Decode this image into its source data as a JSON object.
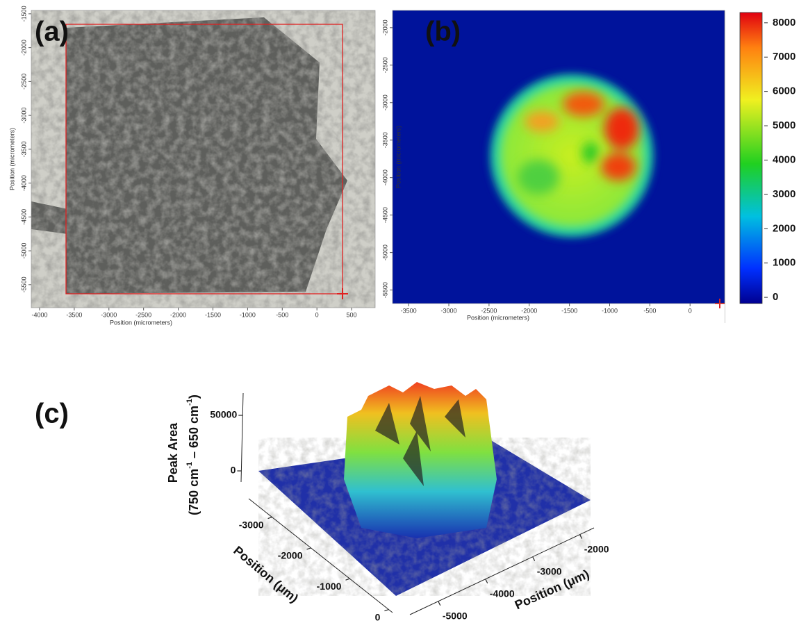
{
  "panels": [
    {
      "label": "(a)",
      "x_axis_label": "Position (micrometers)",
      "y_axis_label": "Position (micrometers)",
      "xlim": [
        -4120,
        840
      ],
      "xticks": [
        -4000,
        -3500,
        -3000,
        -2500,
        -2000,
        -1500,
        -1000,
        -500,
        0,
        500
      ],
      "ylim": [
        -5840,
        -1450
      ],
      "yticks": [
        -1500,
        -2000,
        -2500,
        -3000,
        -3500,
        -4000,
        -4500,
        -5000,
        -5500
      ]
    },
    {
      "label": "(b)",
      "x_axis_label": "Position (micrometers)",
      "y_axis_label": "Position (micrometers)",
      "xlim": [
        -3700,
        430
      ],
      "xticks": [
        -3500,
        -3000,
        -2500,
        -2000,
        -1500,
        -1000,
        -500,
        0
      ],
      "ylim": [
        -5680,
        -1770
      ],
      "yticks": [
        -2000,
        -2500,
        -3000,
        -3500,
        -4000,
        -4500,
        -5000,
        -5500
      ],
      "colorbar": {
        "lim": [
          -180,
          8300
        ],
        "ticks": [
          0,
          1000,
          2000,
          3000,
          4000,
          5000,
          6000,
          7000,
          8000
        ]
      }
    },
    {
      "label": "(c)",
      "z_axis_label": {
        "line1": "Peak Area",
        "line2": [
          "(750 cm",
          "-1",
          " – 650 cm",
          "-1",
          ")"
        ]
      },
      "zlim": [
        -10000,
        70000
      ],
      "zticks": [
        0,
        50000
      ],
      "left_axis_label": "Position (μm)",
      "left_lim": [
        -3600,
        100
      ],
      "left_ticks": [
        -3000,
        -2000,
        -1000,
        0
      ],
      "right_axis_label": "Position (μm)",
      "right_lim": [
        -5600,
        -1700
      ],
      "right_ticks": [
        -5000,
        -4000,
        -3000,
        -2000
      ]
    }
  ]
}
